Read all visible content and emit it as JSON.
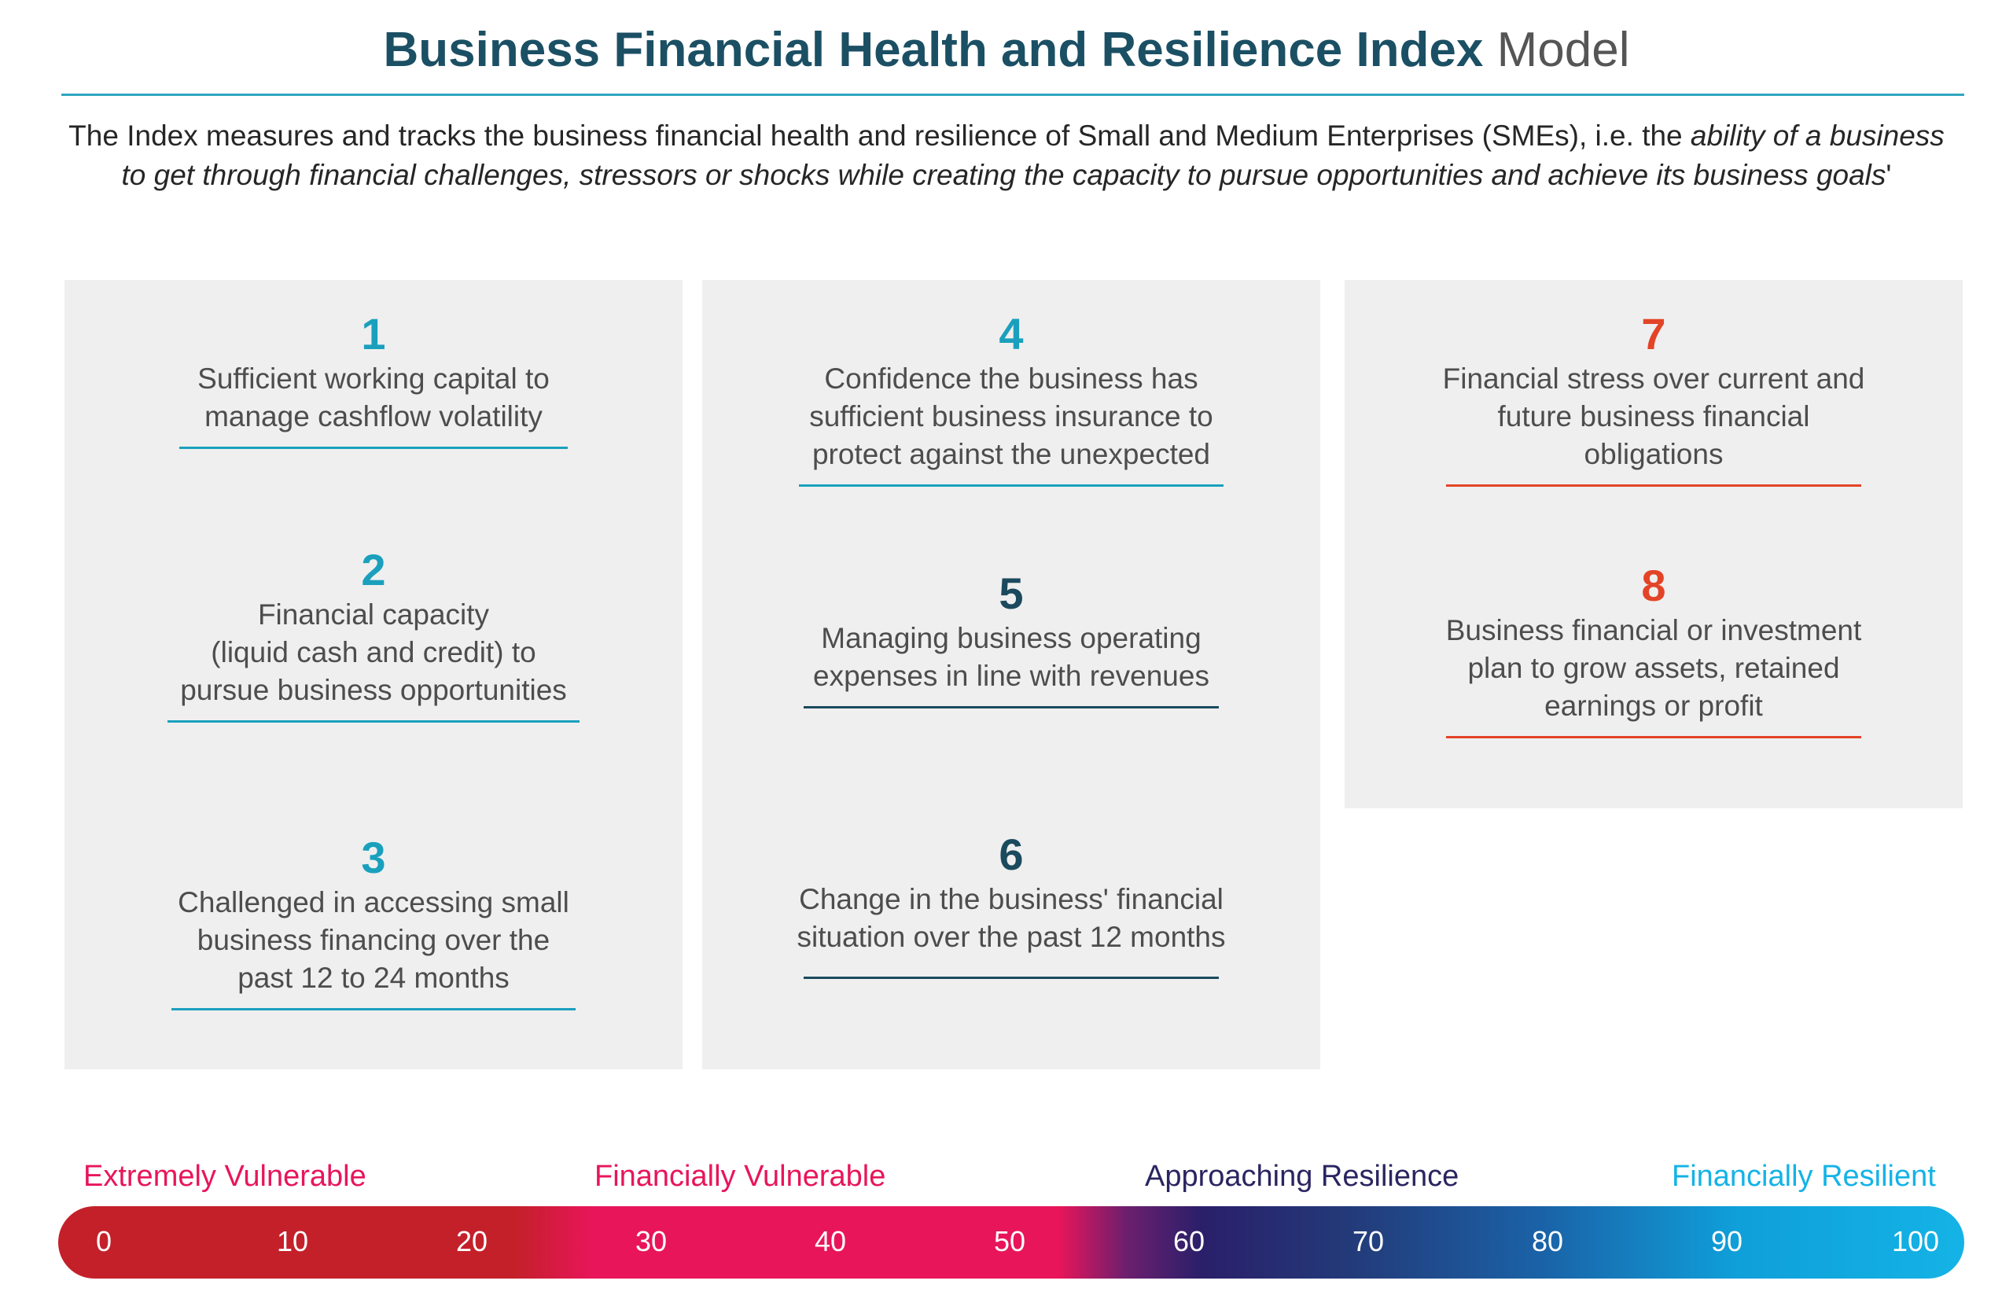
{
  "header": {
    "title_bold": "Business Financial Health and Resilience Index",
    "title_light": "Model"
  },
  "intro": {
    "line1_plain": "The Index measures and tracks the business financial health and resilience of Small and Medium Enterprises (SMEs), i.e. the ",
    "line1_italic": "ability of a business",
    "line2_italic": "to get through financial challenges, stressors or shocks while creating the capacity to pursue opportunities and achieve its business goals",
    "line2_plain": "'"
  },
  "items": [
    {
      "number": "1",
      "lines": [
        "Sufficient working capital to",
        "manage cashflow volatility"
      ]
    },
    {
      "number": "2",
      "lines": [
        "Financial capacity",
        "(liquid cash and credit) to",
        "pursue business opportunities"
      ]
    },
    {
      "number": "3",
      "lines": [
        "Challenged in accessing small",
        "business financing over the",
        "past 12 to 24 months"
      ]
    },
    {
      "number": "4",
      "lines": [
        "Confidence the business has",
        "sufficient business insurance to",
        "protect against the unexpected"
      ]
    },
    {
      "number": "5",
      "lines": [
        "Managing business operating",
        "expenses in line with revenues"
      ]
    },
    {
      "number": "6",
      "lines": [
        "Change in the business' financial",
        "situation over the past 12 months"
      ]
    },
    {
      "number": "7",
      "lines": [
        "Financial stress over current and",
        "future business financial",
        "obligations"
      ]
    },
    {
      "number": "8",
      "lines": [
        "Business financial or investment",
        "plan to grow assets, retained",
        "earnings or profit"
      ]
    }
  ],
  "scale": {
    "labels": [
      {
        "text": "Extremely Vulnerable",
        "color": "#e8155a"
      },
      {
        "text": "Financially Vulnerable",
        "color": "#e8155a"
      },
      {
        "text": "Approaching Resilience",
        "color": "#2a2560"
      },
      {
        "text": "Financially Resilient",
        "color": "#14b3e6"
      }
    ],
    "ticks": [
      "0",
      "10",
      "20",
      "30",
      "40",
      "50",
      "60",
      "70",
      "80",
      "90",
      "100"
    ]
  },
  "colors": {
    "title": "#1b4f64",
    "teal": "#1aa0bd",
    "navy": "#1b4a5e",
    "red": "#e34427",
    "panel": "#efefef"
  }
}
